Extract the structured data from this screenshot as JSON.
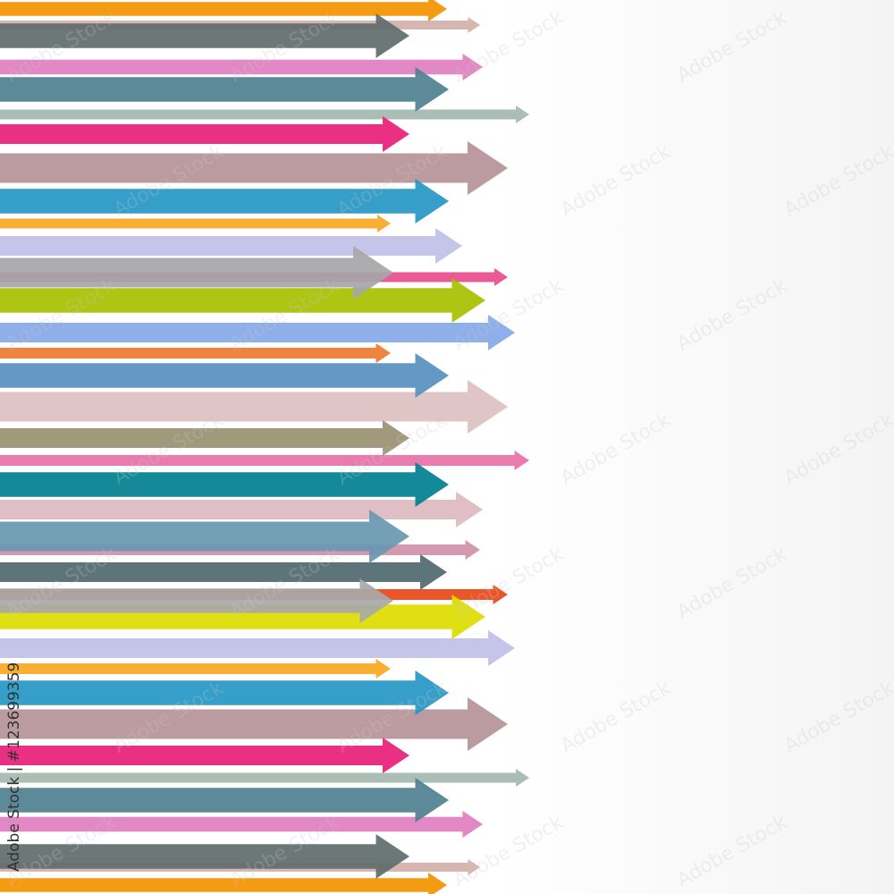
{
  "credit": "Adobe Stock | #123699359",
  "watermark": "Adobe Stock",
  "arrow_colors": [
    "#f39200",
    "#d4b0a8",
    "#5f6b6b",
    "#e07ec0",
    "#4f8090",
    "#a4b8b0",
    "#e81e78",
    "#b59298",
    "#2496c4",
    "#f7a823",
    "#c0c0e8",
    "#e84c8c",
    "#a6a6a8",
    "#a8c000",
    "#86a8e8",
    "#f07830",
    "#5890c0",
    "#dcc0c0",
    "#989070",
    "#e870a8",
    "#008090",
    "#dcb8c0",
    "#6898b0",
    "#d090a8",
    "#4f6870",
    "#e84818",
    "#a8a8a8",
    "#dcdc00",
    "#c0c0e8",
    "#f7a823",
    "#2496c4",
    "#b59298",
    "#e81e78",
    "#a4b8b0",
    "#4f8090",
    "#e07ec0",
    "#5f6b6b",
    "#d4b0a8",
    "#f39200"
  ]
}
